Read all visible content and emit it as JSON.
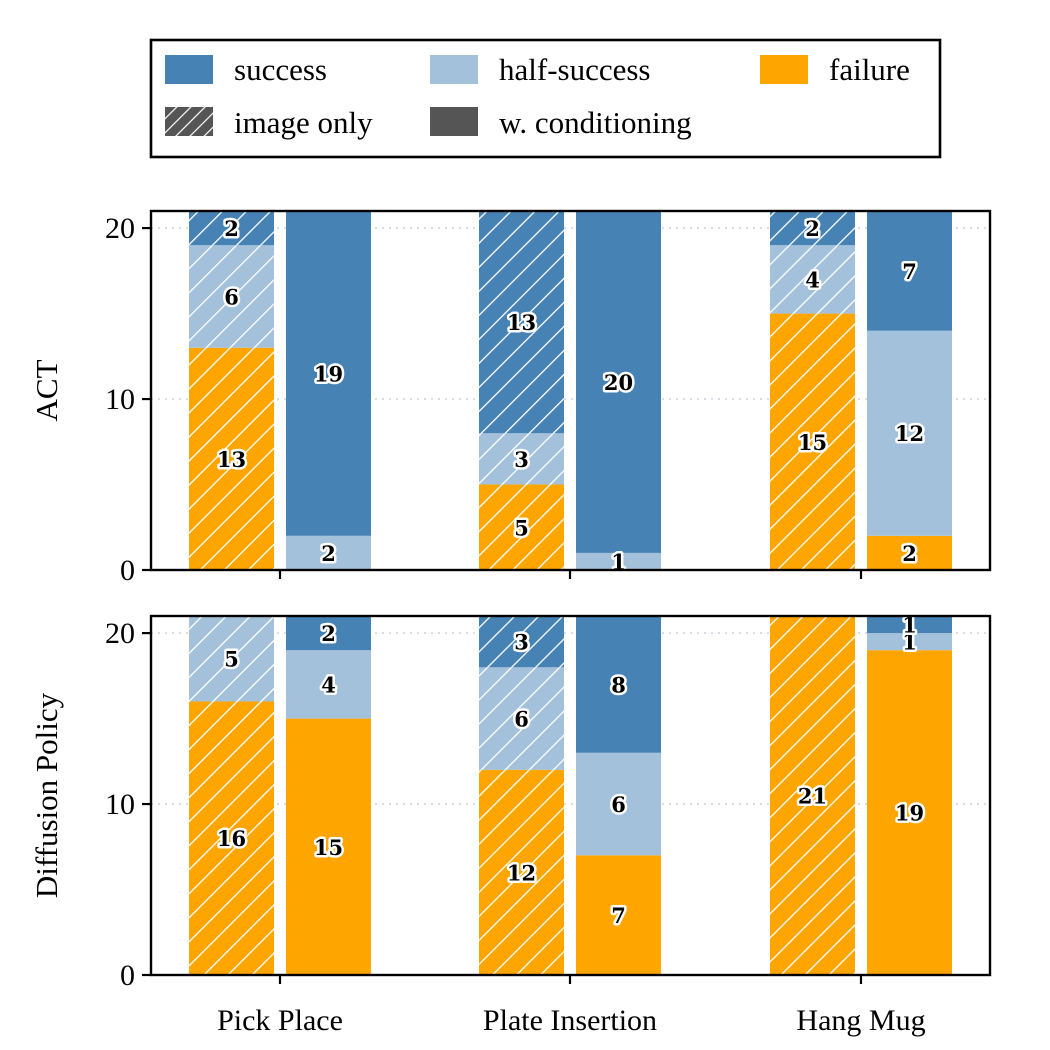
{
  "colors": {
    "success": "#4682b4",
    "half_success": "#a3c1da",
    "failure": "#ffa500",
    "swatch_dark": "#555555"
  },
  "legend": {
    "items": [
      {
        "label": "success",
        "key": "success"
      },
      {
        "label": "half-success",
        "key": "half_success"
      },
      {
        "label": "failure",
        "key": "failure"
      },
      {
        "label": "image only",
        "key": "image_only"
      },
      {
        "label": "w. conditioning",
        "key": "w_conditioning"
      }
    ]
  },
  "chart_data": {
    "type": "bar",
    "stacked": true,
    "categories": [
      "Pick Place",
      "Plate Insertion",
      "Hang Mug"
    ],
    "variants": [
      "image only",
      "w. conditioning"
    ],
    "stack_order": [
      "failure",
      "half_success",
      "success"
    ],
    "yticks": [
      0,
      10,
      20
    ],
    "ylim": [
      0,
      21
    ],
    "panels": [
      {
        "ylabel": "ACT",
        "groups": [
          {
            "category": "Pick Place",
            "image_only": {
              "failure": 13,
              "half_success": 6,
              "success": 2
            },
            "w_conditioning": {
              "failure": 0,
              "half_success": 2,
              "success": 19
            }
          },
          {
            "category": "Plate Insertion",
            "image_only": {
              "failure": 5,
              "half_success": 3,
              "success": 13
            },
            "w_conditioning": {
              "failure": 0,
              "half_success": 1,
              "success": 20
            }
          },
          {
            "category": "Hang Mug",
            "image_only": {
              "failure": 15,
              "half_success": 4,
              "success": 2
            },
            "w_conditioning": {
              "failure": 2,
              "half_success": 12,
              "success": 7
            }
          }
        ]
      },
      {
        "ylabel": "Diffusion Policy",
        "groups": [
          {
            "category": "Pick Place",
            "image_only": {
              "failure": 16,
              "half_success": 5,
              "success": 0
            },
            "w_conditioning": {
              "failure": 15,
              "half_success": 4,
              "success": 2
            }
          },
          {
            "category": "Plate Insertion",
            "image_only": {
              "failure": 12,
              "half_success": 6,
              "success": 3
            },
            "w_conditioning": {
              "failure": 7,
              "half_success": 6,
              "success": 8
            }
          },
          {
            "category": "Hang Mug",
            "image_only": {
              "failure": 21,
              "half_success": 0,
              "success": 0
            },
            "w_conditioning": {
              "failure": 19,
              "half_success": 1,
              "success": 1
            }
          }
        ]
      }
    ]
  }
}
